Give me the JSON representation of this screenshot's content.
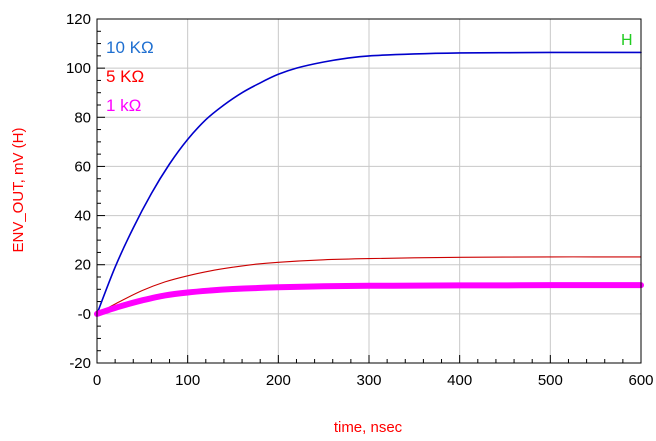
{
  "chart_data": {
    "type": "line",
    "xlabel": "time, nsec",
    "ylabel": "ENV_OUT, mV (H)",
    "xlim": [
      0,
      600
    ],
    "ylim": [
      -20,
      120
    ],
    "x_ticks": [
      "0",
      "100",
      "200",
      "300",
      "400",
      "500",
      "600"
    ],
    "y_ticks": [
      "-20",
      "-0",
      "20",
      "40",
      "60",
      "80",
      "100",
      "120"
    ],
    "grid": true,
    "legend_position": "top-left",
    "marker_label": "H",
    "series": [
      {
        "name": "10 KΩ",
        "color": "#0000cc",
        "legend_color": "#1f6fd0",
        "x": [
          0,
          20,
          40,
          60,
          80,
          100,
          120,
          140,
          160,
          180,
          200,
          220,
          250,
          275,
          300,
          350,
          400,
          450,
          500,
          550,
          600
        ],
        "y": [
          0,
          19,
          35,
          49,
          61,
          71,
          79,
          85,
          90,
          94,
          97.5,
          100,
          102.5,
          104,
          105,
          105.8,
          106.2,
          106.3,
          106.4,
          106.4,
          106.4
        ]
      },
      {
        "name": "5 KΩ",
        "color": "#cc0000",
        "legend_color": "#ff0000",
        "x": [
          0,
          25,
          50,
          75,
          100,
          125,
          150,
          175,
          200,
          250,
          300,
          350,
          400,
          450,
          500,
          550,
          600
        ],
        "y": [
          0,
          5,
          9.5,
          13,
          15.5,
          17.5,
          19,
          20.2,
          21,
          22,
          22.5,
          22.8,
          23,
          23.1,
          23.2,
          23.2,
          23.2
        ]
      },
      {
        "name": "1 kΩ",
        "color": "#ff00ff",
        "legend_color": "#ff00ff",
        "x": [
          0,
          25,
          50,
          75,
          100,
          125,
          150,
          175,
          200,
          250,
          300,
          350,
          400,
          450,
          500,
          550,
          600
        ],
        "y": [
          0,
          3,
          5.5,
          7.5,
          8.7,
          9.5,
          10.1,
          10.5,
          10.8,
          11.2,
          11.4,
          11.5,
          11.6,
          11.6,
          11.7,
          11.7,
          11.7
        ]
      }
    ]
  }
}
